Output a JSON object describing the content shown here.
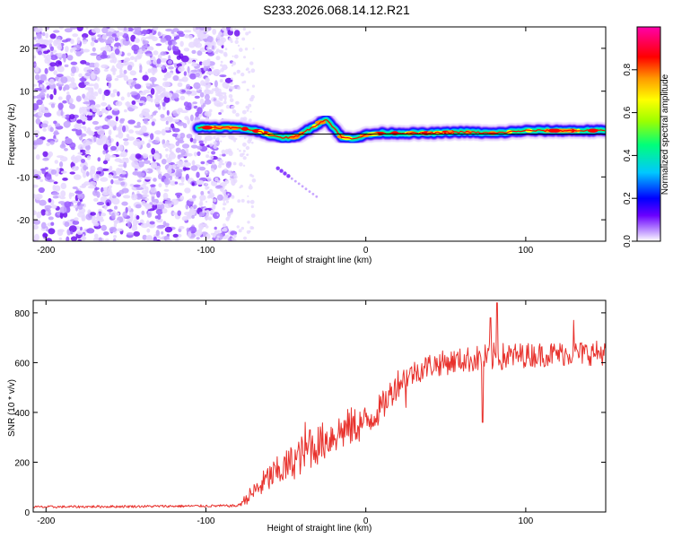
{
  "title": "S233.2026.068.14.12.R21",
  "chart_data": [
    {
      "type": "heatmap",
      "xlabel": "Height of straight line (km)",
      "ylabel": "Frequency (Hz)",
      "xlim": [
        -208,
        150
      ],
      "ylim": [
        -25,
        25
      ],
      "xticks": [
        -200,
        -100,
        0,
        100
      ],
      "yticks": [
        -20,
        -10,
        0,
        10,
        20
      ],
      "noise_region_x": [
        -208,
        -80
      ],
      "ridge_x": [
        -105,
        -95,
        -85,
        -75,
        -65,
        -55,
        -45,
        -35,
        -25,
        -20,
        -15,
        -10,
        -5,
        0,
        10,
        20,
        40,
        60,
        80,
        100,
        120,
        150
      ],
      "ridge_y": [
        1.5,
        1.5,
        1.5,
        1.2,
        0.5,
        -0.8,
        -0.8,
        1.2,
        3.5,
        1.5,
        -0.8,
        -1.0,
        -0.8,
        -0.2,
        0.2,
        0.2,
        0.2,
        0.5,
        0.2,
        0.8,
        0.8,
        0.8
      ],
      "colorbar": {
        "label": "Normalized spectral amplitude",
        "range": [
          0.0,
          1.0
        ],
        "ticks": [
          "0.0",
          "0.2",
          "0.4",
          "0.6",
          "0.8"
        ],
        "tick_values": [
          0.0,
          0.2,
          0.4,
          0.6,
          0.8
        ],
        "colors": [
          "#ffffff",
          "#c9a7ff",
          "#6a00ff",
          "#0000ff",
          "#00c8ff",
          "#00ff7a",
          "#9cff00",
          "#ffff00",
          "#ff9900",
          "#ff0000",
          "#ff00aa"
        ]
      }
    },
    {
      "type": "line",
      "xlabel": "Height of straight line (km)",
      "ylabel": "SNR (10 * v/v)",
      "xlim": [
        -208,
        150
      ],
      "ylim": [
        0,
        850
      ],
      "xticks": [
        -200,
        -100,
        0,
        100
      ],
      "yticks": [
        0,
        200,
        400,
        600,
        800
      ],
      "series_color": "#e8322d",
      "trend_x": [
        -208,
        -80,
        -70,
        -60,
        -50,
        -40,
        -30,
        -20,
        -10,
        0,
        10,
        20,
        30,
        40,
        60,
        80,
        100,
        120,
        150
      ],
      "trend_y": [
        20,
        25,
        80,
        140,
        180,
        230,
        270,
        310,
        340,
        360,
        420,
        520,
        560,
        590,
        610,
        620,
        630,
        635,
        640
      ],
      "noise_scale": [
        5,
        5,
        40,
        60,
        70,
        80,
        80,
        80,
        80,
        70,
        60,
        60,
        50,
        50,
        50,
        60,
        50,
        50,
        50
      ],
      "spikes": [
        [
          -38,
          360
        ],
        [
          -35,
          330
        ],
        [
          -20,
          310
        ],
        [
          25,
          420
        ],
        [
          73,
          360
        ],
        [
          82,
          840
        ],
        [
          78,
          780
        ],
        [
          130,
          770
        ]
      ]
    }
  ]
}
